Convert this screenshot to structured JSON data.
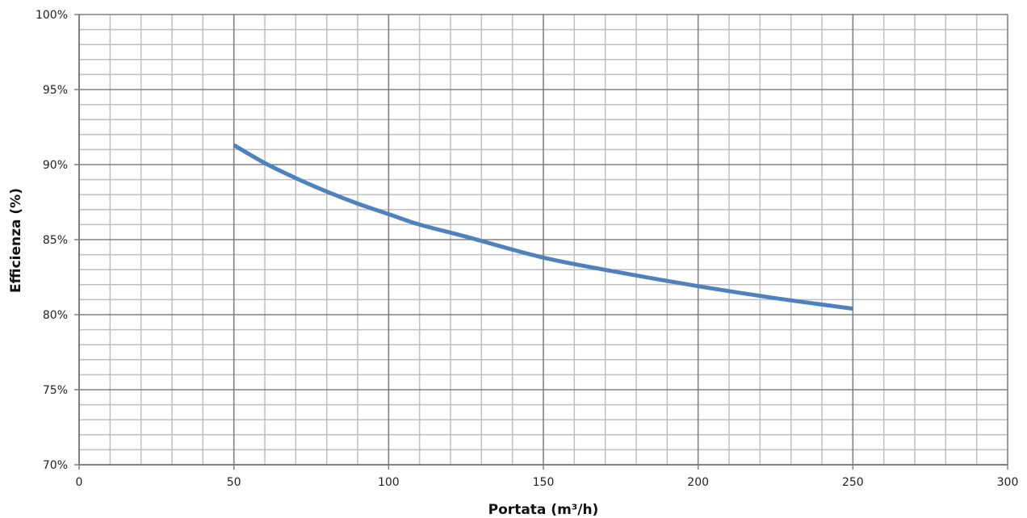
{
  "chart_data": {
    "type": "line",
    "title": "",
    "xlabel": "Portata (m³/h)",
    "ylabel": "Efficienza (%)",
    "xlim": [
      0,
      300
    ],
    "ylim": [
      70,
      100
    ],
    "x_ticks": [
      {
        "value": 0,
        "label": "0"
      },
      {
        "value": 50,
        "label": "50"
      },
      {
        "value": 100,
        "label": "100"
      },
      {
        "value": 150,
        "label": "150"
      },
      {
        "value": 200,
        "label": "200"
      },
      {
        "value": 250,
        "label": "250"
      },
      {
        "value": 300,
        "label": "300"
      }
    ],
    "y_ticks": [
      {
        "value": 70,
        "label": "70%"
      },
      {
        "value": 75,
        "label": "75%"
      },
      {
        "value": 80,
        "label": "80%"
      },
      {
        "value": 85,
        "label": "85%"
      },
      {
        "value": 90,
        "label": "90%"
      },
      {
        "value": 95,
        "label": "95%"
      },
      {
        "value": 100,
        "label": "100%"
      }
    ],
    "grid": true,
    "minor_grid": {
      "x_step": 10,
      "y_step": 1
    },
    "legend": "none",
    "colors": {
      "line": "#4F81BD",
      "major_grid": "#808080",
      "minor_grid": "#BFBFBF",
      "axis": "#808080"
    },
    "series": [
      {
        "x": [
          50,
          60,
          70,
          80,
          90,
          100,
          110,
          125,
          150,
          175,
          200,
          225,
          250
        ],
        "y": [
          91.3,
          90.1,
          89.1,
          88.2,
          87.4,
          86.7,
          86.0,
          85.2,
          83.8,
          82.8,
          81.9,
          81.1,
          80.4
        ]
      }
    ]
  }
}
